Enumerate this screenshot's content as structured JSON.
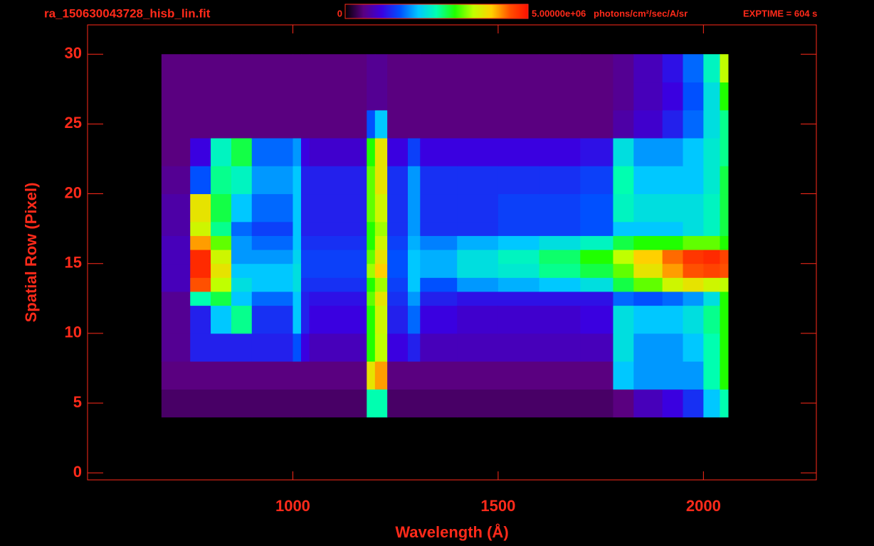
{
  "chart_data": {
    "type": "heatmap",
    "title": "ra_150630043728_hisb_lin.fit",
    "xlabel": "Wavelength (Å)",
    "ylabel": "Spatial Row (Pixel)",
    "colorbar_unit": "photons/cm²/sec/A/sr",
    "exposure": "EXPTIME = 604 s",
    "zlim": [
      0,
      {
        "value": 5000000,
        "label": "5.00000e+06"
      }
    ],
    "colorscale": [
      "#000000",
      "#5a0080",
      "#3a00e0",
      "#0050ff",
      "#00c8ff",
      "#00ffb0",
      "#20ff00",
      "#c0ff00",
      "#ffd000",
      "#ff5000",
      "#ff1000"
    ],
    "xlim": [
      500,
      2275
    ],
    "ylim": [
      -0.5,
      32.1
    ],
    "xticks": [
      1000,
      1500,
      2000
    ],
    "yticks": [
      0,
      5,
      10,
      15,
      20,
      25,
      30
    ],
    "x_edges": [
      680,
      750,
      800,
      850,
      900,
      1000,
      1020,
      1040,
      1180,
      1200,
      1230,
      1280,
      1310,
      1400,
      1500,
      1600,
      1700,
      1780,
      1830,
      1900,
      1950,
      2000,
      2040,
      2060
    ],
    "y_edges": [
      4,
      6,
      8,
      10,
      12,
      13,
      14,
      15,
      16,
      17,
      18,
      20,
      22,
      24,
      26,
      28,
      30
    ],
    "z": [
      [
        400000.0,
        400000.0,
        400000.0,
        400000.0,
        400000.0,
        400000.0,
        400000.0,
        400000.0,
        2500000.0,
        2500000.0,
        400000.0,
        400000.0,
        400000.0,
        400000.0,
        400000.0,
        400000.0,
        400000.0,
        500000.0,
        800000.0,
        1000000.0,
        1300000.0,
        2000000.0,
        2500000.0
      ],
      [
        500000.0,
        500000.0,
        500000.0,
        500000.0,
        500000.0,
        500000.0,
        500000.0,
        500000.0,
        3800000.0,
        4200000.0,
        500000.0,
        500000.0,
        500000.0,
        500000.0,
        500000.0,
        500000.0,
        500000.0,
        2000000.0,
        1800000.0,
        1800000.0,
        1800000.0,
        2500000.0,
        3000000.0
      ],
      [
        600000.0,
        1200000.0,
        1200000.0,
        1200000.0,
        1200000.0,
        1500000.0,
        1000000.0,
        800000.0,
        3000000.0,
        3500000.0,
        1000000.0,
        1200000.0,
        800000.0,
        800000.0,
        800000.0,
        800000.0,
        800000.0,
        2200000.0,
        1800000.0,
        1800000.0,
        2000000.0,
        2500000.0,
        3000000.0
      ],
      [
        600000.0,
        1200000.0,
        2000000.0,
        2600000.0,
        1300000.0,
        2000000.0,
        1200000.0,
        1000000.0,
        3000000.0,
        3600000.0,
        1200000.0,
        1600000.0,
        1000000.0,
        900000.0,
        900000.0,
        900000.0,
        1000000.0,
        2200000.0,
        2000000.0,
        2000000.0,
        2200000.0,
        2600000.0,
        3000000.0
      ],
      [
        600000.0,
        2500000.0,
        2800000.0,
        2000000.0,
        1600000.0,
        2000000.0,
        1200000.0,
        1100000.0,
        3200000.0,
        3800000.0,
        1300000.0,
        1800000.0,
        1200000.0,
        1100000.0,
        1100000.0,
        1100000.0,
        1100000.0,
        1600000.0,
        1500000.0,
        1600000.0,
        1800000.0,
        2200000.0,
        3000000.0
      ],
      [
        800000.0,
        4500000.0,
        3500000.0,
        2200000.0,
        2000000.0,
        2200000.0,
        1300000.0,
        1300000.0,
        3000000.0,
        3400000.0,
        1400000.0,
        2000000.0,
        1500000.0,
        1800000.0,
        1900000.0,
        2000000.0,
        2200000.0,
        2800000.0,
        3200000.0,
        3600000.0,
        3800000.0,
        3600000.0,
        3500000.0
      ],
      [
        800000.0,
        4800000.0,
        3800000.0,
        2000000.0,
        2000000.0,
        2200000.0,
        1400000.0,
        1400000.0,
        3400000.0,
        4000000.0,
        1500000.0,
        2000000.0,
        1900000.0,
        2200000.0,
        2300000.0,
        2600000.0,
        2800000.0,
        3200000.0,
        3800000.0,
        4200000.0,
        4500000.0,
        4600000.0,
        4500000.0
      ],
      [
        800000.0,
        4800000.0,
        3600000.0,
        1800000.0,
        1800000.0,
        2100000.0,
        1400000.0,
        1400000.0,
        3200000.0,
        3800000.0,
        1500000.0,
        2000000.0,
        1900000.0,
        2200000.0,
        2400000.0,
        2700000.0,
        3000000.0,
        3500000.0,
        4000000.0,
        4400000.0,
        4700000.0,
        4800000.0,
        4600000.0
      ],
      [
        800000.0,
        4200000.0,
        3200000.0,
        1800000.0,
        1600000.0,
        2000000.0,
        1300000.0,
        1300000.0,
        3000000.0,
        3600000.0,
        1400000.0,
        1900000.0,
        1700000.0,
        1900000.0,
        2000000.0,
        2200000.0,
        2400000.0,
        2800000.0,
        3000000.0,
        3000000.0,
        3200000.0,
        3200000.0,
        3000000.0
      ],
      [
        700000.0,
        3600000.0,
        2600000.0,
        1600000.0,
        1400000.0,
        2000000.0,
        1200000.0,
        1200000.0,
        3000000.0,
        3400000.0,
        1300000.0,
        1800000.0,
        1300000.0,
        1300000.0,
        1400000.0,
        1400000.0,
        1500000.0,
        2000000.0,
        2000000.0,
        2000000.0,
        2200000.0,
        2400000.0,
        2800000.0
      ],
      [
        700000.0,
        3800000.0,
        2800000.0,
        2000000.0,
        1600000.0,
        2000000.0,
        1200000.0,
        1200000.0,
        3200000.0,
        3600000.0,
        1300000.0,
        1800000.0,
        1300000.0,
        1300000.0,
        1400000.0,
        1400000.0,
        1500000.0,
        2400000.0,
        2200000.0,
        2200000.0,
        2200000.0,
        2400000.0,
        2800000.0
      ],
      [
        600000.0,
        1500000.0,
        2600000.0,
        2400000.0,
        1800000.0,
        2000000.0,
        1200000.0,
        1200000.0,
        3200000.0,
        3800000.0,
        1300000.0,
        1800000.0,
        1300000.0,
        1300000.0,
        1300000.0,
        1300000.0,
        1400000.0,
        2500000.0,
        2000000.0,
        2000000.0,
        2000000.0,
        2300000.0,
        2800000.0
      ],
      [
        500000.0,
        1000000.0,
        2400000.0,
        2800000.0,
        1600000.0,
        1800000.0,
        1000000.0,
        900000.0,
        3000000.0,
        3800000.0,
        1000000.0,
        1400000.0,
        1000000.0,
        1000000.0,
        1000000.0,
        1000000.0,
        1100000.0,
        2200000.0,
        1800000.0,
        1800000.0,
        2000000.0,
        2300000.0,
        2600000.0
      ],
      [
        500000.0,
        500000.0,
        500000.0,
        500000.0,
        500000.0,
        500000.0,
        500000.0,
        500000.0,
        1500000.0,
        2000000.0,
        500000.0,
        500000.0,
        500000.0,
        500000.0,
        500000.0,
        500000.0,
        500000.0,
        700000.0,
        900000.0,
        1200000.0,
        1600000.0,
        2200000.0,
        2600000.0
      ],
      [
        500000.0,
        500000.0,
        500000.0,
        500000.0,
        500000.0,
        500000.0,
        500000.0,
        500000.0,
        600000.0,
        600000.0,
        500000.0,
        500000.0,
        500000.0,
        500000.0,
        500000.0,
        500000.0,
        500000.0,
        600000.0,
        800000.0,
        1000000.0,
        1500000.0,
        2200000.0,
        3000000.0
      ],
      [
        500000.0,
        500000.0,
        500000.0,
        500000.0,
        500000.0,
        500000.0,
        500000.0,
        500000.0,
        600000.0,
        600000.0,
        500000.0,
        500000.0,
        500000.0,
        500000.0,
        500000.0,
        500000.0,
        500000.0,
        600000.0,
        800000.0,
        1100000.0,
        1600000.0,
        2400000.0,
        3500000.0
      ]
    ]
  }
}
